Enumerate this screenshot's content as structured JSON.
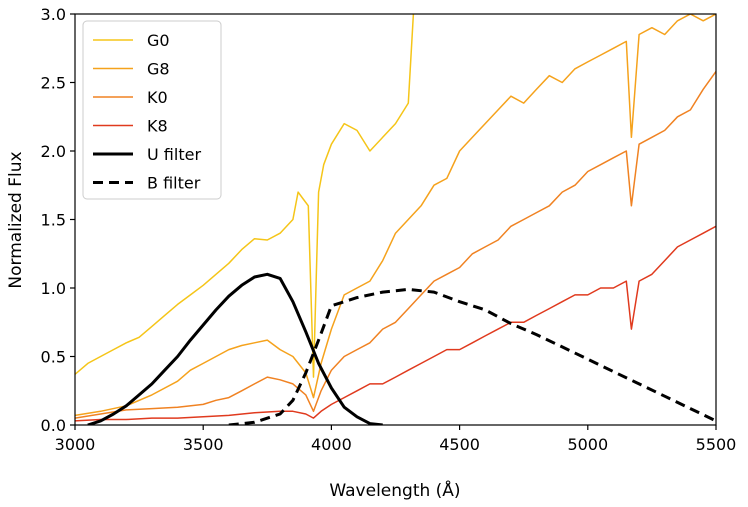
{
  "chart_data": {
    "type": "line",
    "xlabel": "Wavelength (Å)",
    "ylabel": "Normalized Flux",
    "xlim": [
      3000,
      5500
    ],
    "ylim": [
      0.0,
      3.0
    ],
    "xticks": [
      3000,
      3500,
      4000,
      4500,
      5000,
      5500
    ],
    "yticks": [
      0.0,
      0.5,
      1.0,
      1.5,
      2.0,
      2.5,
      3.0
    ],
    "xtick_labels": [
      "3000",
      "3500",
      "4000",
      "4500",
      "5000",
      "5500"
    ],
    "ytick_labels": [
      "0.0",
      "0.5",
      "1.0",
      "1.5",
      "2.0",
      "2.5",
      "3.0"
    ],
    "grid": false,
    "legend_position": "top-left",
    "series": [
      {
        "name": "G0",
        "color": "#f5c518",
        "style": "solid",
        "points": [
          [
            3000,
            0.37
          ],
          [
            3050,
            0.45
          ],
          [
            3100,
            0.5
          ],
          [
            3150,
            0.55
          ],
          [
            3200,
            0.6
          ],
          [
            3250,
            0.64
          ],
          [
            3300,
            0.72
          ],
          [
            3350,
            0.8
          ],
          [
            3400,
            0.88
          ],
          [
            3450,
            0.95
          ],
          [
            3500,
            1.02
          ],
          [
            3550,
            1.1
          ],
          [
            3600,
            1.18
          ],
          [
            3650,
            1.28
          ],
          [
            3700,
            1.36
          ],
          [
            3750,
            1.35
          ],
          [
            3800,
            1.4
          ],
          [
            3850,
            1.5
          ],
          [
            3870,
            1.7
          ],
          [
            3890,
            1.65
          ],
          [
            3910,
            1.6
          ],
          [
            3930,
            0.35
          ],
          [
            3950,
            1.7
          ],
          [
            3970,
            1.9
          ],
          [
            4000,
            2.05
          ],
          [
            4050,
            2.2
          ],
          [
            4100,
            2.15
          ],
          [
            4150,
            2.0
          ],
          [
            4200,
            2.1
          ],
          [
            4250,
            2.2
          ],
          [
            4300,
            2.35
          ],
          [
            4320,
            3.0
          ]
        ]
      },
      {
        "name": "G8",
        "color": "#f5a21c",
        "style": "solid",
        "points": [
          [
            3000,
            0.07
          ],
          [
            3100,
            0.1
          ],
          [
            3200,
            0.14
          ],
          [
            3300,
            0.22
          ],
          [
            3400,
            0.32
          ],
          [
            3450,
            0.4
          ],
          [
            3500,
            0.45
          ],
          [
            3550,
            0.5
          ],
          [
            3600,
            0.55
          ],
          [
            3650,
            0.58
          ],
          [
            3700,
            0.6
          ],
          [
            3750,
            0.62
          ],
          [
            3800,
            0.55
          ],
          [
            3850,
            0.5
          ],
          [
            3900,
            0.38
          ],
          [
            3930,
            0.2
          ],
          [
            3960,
            0.45
          ],
          [
            4000,
            0.7
          ],
          [
            4050,
            0.95
          ],
          [
            4100,
            1.0
          ],
          [
            4150,
            1.05
          ],
          [
            4200,
            1.2
          ],
          [
            4250,
            1.4
          ],
          [
            4300,
            1.5
          ],
          [
            4350,
            1.6
          ],
          [
            4400,
            1.75
          ],
          [
            4450,
            1.8
          ],
          [
            4500,
            2.0
          ],
          [
            4550,
            2.1
          ],
          [
            4600,
            2.2
          ],
          [
            4650,
            2.3
          ],
          [
            4700,
            2.4
          ],
          [
            4750,
            2.35
          ],
          [
            4800,
            2.45
          ],
          [
            4850,
            2.55
          ],
          [
            4900,
            2.5
          ],
          [
            4950,
            2.6
          ],
          [
            5000,
            2.65
          ],
          [
            5050,
            2.7
          ],
          [
            5100,
            2.75
          ],
          [
            5150,
            2.8
          ],
          [
            5170,
            2.1
          ],
          [
            5200,
            2.85
          ],
          [
            5250,
            2.9
          ],
          [
            5300,
            2.85
          ],
          [
            5350,
            2.95
          ],
          [
            5400,
            3.0
          ],
          [
            5450,
            2.95
          ],
          [
            5500,
            3.0
          ]
        ]
      },
      {
        "name": "K0",
        "color": "#f08222",
        "style": "solid",
        "points": [
          [
            3000,
            0.05
          ],
          [
            3100,
            0.08
          ],
          [
            3200,
            0.11
          ],
          [
            3300,
            0.12
          ],
          [
            3400,
            0.13
          ],
          [
            3500,
            0.15
          ],
          [
            3550,
            0.18
          ],
          [
            3600,
            0.2
          ],
          [
            3650,
            0.25
          ],
          [
            3700,
            0.3
          ],
          [
            3750,
            0.35
          ],
          [
            3800,
            0.33
          ],
          [
            3850,
            0.3
          ],
          [
            3900,
            0.22
          ],
          [
            3930,
            0.1
          ],
          [
            3960,
            0.25
          ],
          [
            4000,
            0.4
          ],
          [
            4050,
            0.5
          ],
          [
            4100,
            0.55
          ],
          [
            4150,
            0.6
          ],
          [
            4200,
            0.7
          ],
          [
            4250,
            0.75
          ],
          [
            4300,
            0.85
          ],
          [
            4350,
            0.95
          ],
          [
            4400,
            1.05
          ],
          [
            4450,
            1.1
          ],
          [
            4500,
            1.15
          ],
          [
            4550,
            1.25
          ],
          [
            4600,
            1.3
          ],
          [
            4650,
            1.35
          ],
          [
            4700,
            1.45
          ],
          [
            4750,
            1.5
          ],
          [
            4800,
            1.55
          ],
          [
            4850,
            1.6
          ],
          [
            4900,
            1.7
          ],
          [
            4950,
            1.75
          ],
          [
            5000,
            1.85
          ],
          [
            5050,
            1.9
          ],
          [
            5100,
            1.95
          ],
          [
            5150,
            2.0
          ],
          [
            5170,
            1.6
          ],
          [
            5200,
            2.05
          ],
          [
            5250,
            2.1
          ],
          [
            5300,
            2.15
          ],
          [
            5350,
            2.25
          ],
          [
            5400,
            2.3
          ],
          [
            5450,
            2.45
          ],
          [
            5500,
            2.58
          ]
        ]
      },
      {
        "name": "K8",
        "color": "#e03a1e",
        "style": "solid",
        "points": [
          [
            3000,
            0.03
          ],
          [
            3100,
            0.04
          ],
          [
            3200,
            0.04
          ],
          [
            3300,
            0.05
          ],
          [
            3400,
            0.05
          ],
          [
            3500,
            0.06
          ],
          [
            3600,
            0.07
          ],
          [
            3700,
            0.09
          ],
          [
            3800,
            0.1
          ],
          [
            3850,
            0.1
          ],
          [
            3900,
            0.08
          ],
          [
            3930,
            0.05
          ],
          [
            3960,
            0.1
          ],
          [
            4000,
            0.15
          ],
          [
            4050,
            0.2
          ],
          [
            4100,
            0.25
          ],
          [
            4150,
            0.3
          ],
          [
            4200,
            0.3
          ],
          [
            4250,
            0.35
          ],
          [
            4300,
            0.4
          ],
          [
            4350,
            0.45
          ],
          [
            4400,
            0.5
          ],
          [
            4450,
            0.55
          ],
          [
            4500,
            0.55
          ],
          [
            4550,
            0.6
          ],
          [
            4600,
            0.65
          ],
          [
            4650,
            0.7
          ],
          [
            4700,
            0.75
          ],
          [
            4750,
            0.75
          ],
          [
            4800,
            0.8
          ],
          [
            4850,
            0.85
          ],
          [
            4900,
            0.9
          ],
          [
            4950,
            0.95
          ],
          [
            5000,
            0.95
          ],
          [
            5050,
            1.0
          ],
          [
            5100,
            1.0
          ],
          [
            5150,
            1.05
          ],
          [
            5170,
            0.7
          ],
          [
            5200,
            1.05
          ],
          [
            5250,
            1.1
          ],
          [
            5300,
            1.2
          ],
          [
            5350,
            1.3
          ],
          [
            5400,
            1.35
          ],
          [
            5450,
            1.4
          ],
          [
            5500,
            1.45
          ]
        ]
      },
      {
        "name": "U filter",
        "color": "#000000",
        "style": "solid",
        "points": [
          [
            3050,
            0.0
          ],
          [
            3100,
            0.03
          ],
          [
            3150,
            0.08
          ],
          [
            3200,
            0.14
          ],
          [
            3250,
            0.22
          ],
          [
            3300,
            0.3
          ],
          [
            3350,
            0.4
          ],
          [
            3400,
            0.5
          ],
          [
            3450,
            0.62
          ],
          [
            3500,
            0.73
          ],
          [
            3550,
            0.84
          ],
          [
            3600,
            0.94
          ],
          [
            3650,
            1.02
          ],
          [
            3700,
            1.08
          ],
          [
            3750,
            1.1
          ],
          [
            3800,
            1.07
          ],
          [
            3850,
            0.9
          ],
          [
            3900,
            0.68
          ],
          [
            3950,
            0.45
          ],
          [
            4000,
            0.27
          ],
          [
            4050,
            0.13
          ],
          [
            4100,
            0.06
          ],
          [
            4150,
            0.01
          ],
          [
            4200,
            0.0
          ]
        ]
      },
      {
        "name": "B filter",
        "color": "#000000",
        "style": "dashed",
        "points": [
          [
            3600,
            0.0
          ],
          [
            3700,
            0.02
          ],
          [
            3800,
            0.08
          ],
          [
            3850,
            0.18
          ],
          [
            3900,
            0.38
          ],
          [
            3950,
            0.62
          ],
          [
            4000,
            0.87
          ],
          [
            4100,
            0.93
          ],
          [
            4200,
            0.97
          ],
          [
            4300,
            0.99
          ],
          [
            4400,
            0.97
          ],
          [
            4500,
            0.9
          ],
          [
            4600,
            0.84
          ],
          [
            4700,
            0.74
          ],
          [
            4800,
            0.66
          ],
          [
            4900,
            0.57
          ],
          [
            5000,
            0.48
          ],
          [
            5100,
            0.39
          ],
          [
            5200,
            0.3
          ],
          [
            5300,
            0.21
          ],
          [
            5400,
            0.12
          ],
          [
            5500,
            0.03
          ]
        ]
      }
    ]
  }
}
